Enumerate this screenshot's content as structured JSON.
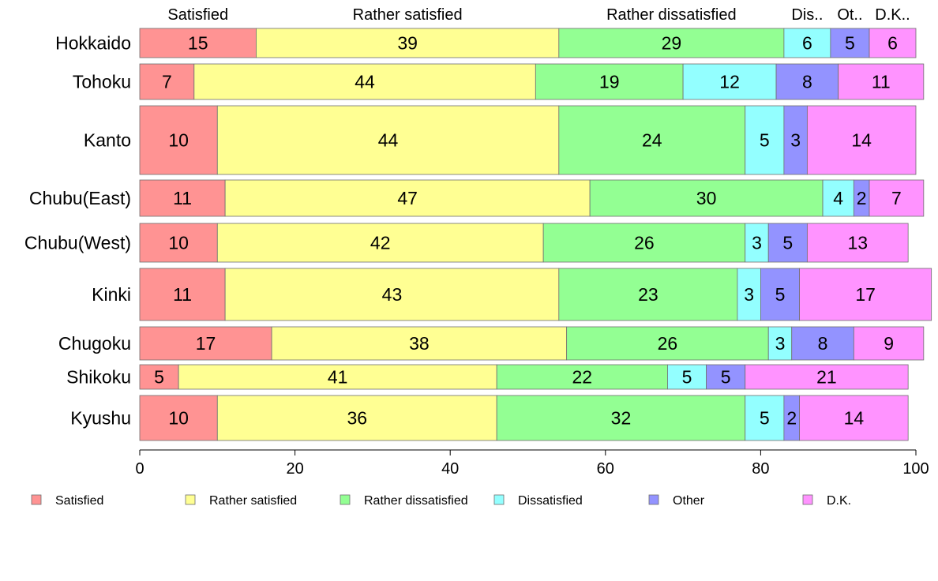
{
  "chart_data": {
    "type": "bar",
    "orientation": "horizontal",
    "stacked": true,
    "variable_width": true,
    "title": "",
    "xlabel": "",
    "ylabel": "",
    "xlim": [
      0,
      100
    ],
    "xticks": [
      0,
      20,
      40,
      60,
      80,
      100
    ],
    "grid": false,
    "legend_position": "bottom",
    "column_labels": [
      "Satisfied",
      "Rather satisfied",
      "Rather dissatisfied",
      "Dis..",
      "Ot..",
      "D.K.."
    ],
    "categories": [
      "Hokkaido",
      "Tohoku",
      "Kanto",
      "Chubu(East)",
      "Chubu(West)",
      "Kinki",
      "Chugoku",
      "Shikoku",
      "Kyushu"
    ],
    "series": [
      {
        "name": "Satisfied",
        "color": "#ff9393",
        "values": [
          15,
          7,
          10,
          11,
          10,
          11,
          17,
          5,
          10
        ]
      },
      {
        "name": "Rather satisfied",
        "color": "#ffff93",
        "values": [
          39,
          44,
          44,
          47,
          42,
          43,
          38,
          41,
          36
        ]
      },
      {
        "name": "Rather dissatisfied",
        "color": "#93ff93",
        "values": [
          29,
          19,
          24,
          30,
          26,
          23,
          26,
          22,
          32
        ]
      },
      {
        "name": "Dissatisfied",
        "color": "#93ffff",
        "values": [
          6,
          12,
          5,
          4,
          3,
          3,
          3,
          5,
          5
        ]
      },
      {
        "name": "Other",
        "color": "#9393ff",
        "values": [
          5,
          8,
          3,
          2,
          5,
          5,
          8,
          5,
          2
        ]
      },
      {
        "name": "D.K.",
        "color": "#ff93ff",
        "values": [
          6,
          11,
          14,
          7,
          13,
          17,
          9,
          21,
          14
        ]
      }
    ]
  }
}
